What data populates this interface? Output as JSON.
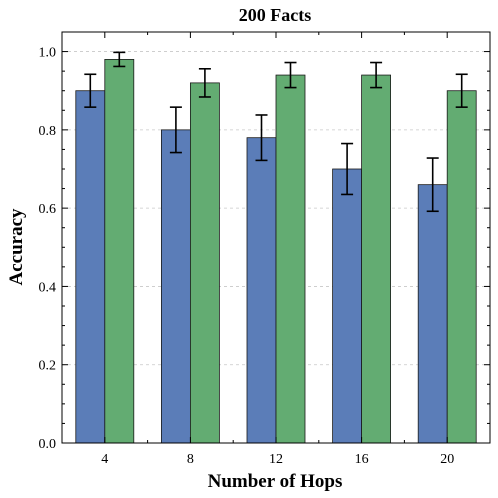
{
  "chart_data": {
    "type": "bar",
    "title": "200 Facts",
    "xlabel": "Number of Hops",
    "ylabel": "Accuracy",
    "categories": [
      "4",
      "8",
      "12",
      "16",
      "20"
    ],
    "ylim": [
      0,
      1.05
    ],
    "yticks": [
      "0.0",
      "0.2",
      "0.4",
      "0.6",
      "0.8",
      "1.0"
    ],
    "grid": true,
    "series": [
      {
        "color": "#5b7db8",
        "values": [
          0.9,
          0.8,
          0.78,
          0.7,
          0.66
        ],
        "errors": [
          0.042,
          0.058,
          0.058,
          0.065,
          0.068
        ]
      },
      {
        "color": "#63ac72",
        "values": [
          0.98,
          0.92,
          0.94,
          0.94,
          0.9
        ],
        "errors": [
          0.018,
          0.036,
          0.032,
          0.032,
          0.042
        ]
      }
    ]
  }
}
